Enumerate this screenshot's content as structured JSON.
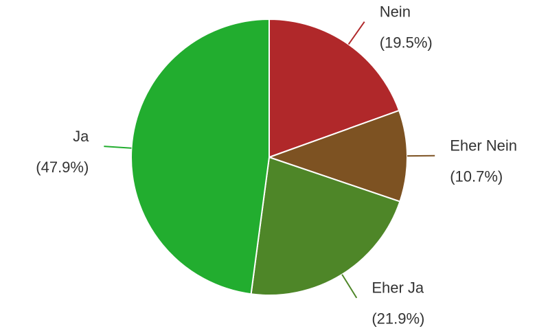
{
  "chart_data": {
    "type": "pie",
    "categories": [
      "Nein",
      "Eher Nein",
      "Eher Ja",
      "Ja"
    ],
    "values": [
      19.5,
      10.7,
      21.9,
      47.9
    ],
    "value_labels": [
      "(19.5%)",
      "(10.7%)",
      "(21.9%)",
      "(47.9%)"
    ],
    "colors": [
      "#b0282a",
      "#7d5222",
      "#4e8628",
      "#22ad2f"
    ]
  }
}
